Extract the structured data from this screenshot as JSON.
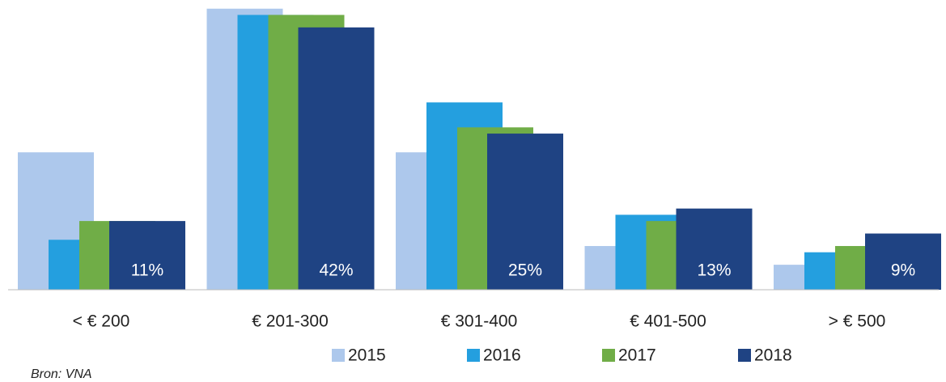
{
  "chart_data": {
    "type": "bar",
    "mode": "overlap",
    "categories": [
      "< € 200",
      "€ 201-300",
      "€ 301-400",
      "€ 401-500",
      "> € 500"
    ],
    "series": [
      {
        "name": "2015",
        "color": "#adc8ec",
        "values": [
          22,
          45,
          22,
          7,
          4
        ]
      },
      {
        "name": "2016",
        "color": "#249fdf",
        "values": [
          8,
          44,
          30,
          12,
          6
        ]
      },
      {
        "name": "2017",
        "color": "#70ad47",
        "values": [
          11,
          44,
          26,
          11,
          7
        ]
      },
      {
        "name": "2018",
        "color": "#1f4383",
        "values": [
          11,
          42,
          25,
          13,
          9
        ],
        "value_labels": [
          "11%",
          "42%",
          "25%",
          "13%",
          "9%"
        ]
      }
    ],
    "ylim": [
      0,
      46
    ],
    "source": "Bron: VNA"
  }
}
